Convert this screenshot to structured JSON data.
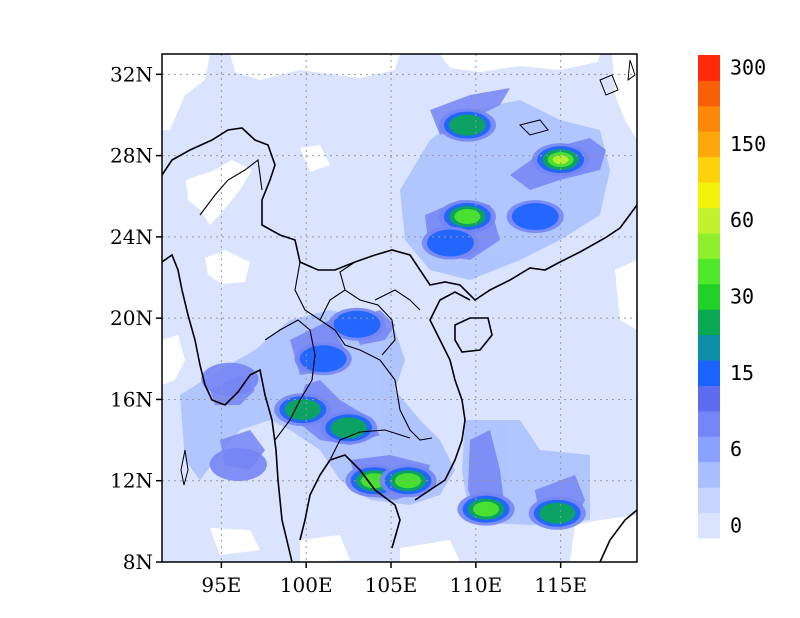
{
  "map": {
    "lon_range": [
      91.5,
      119.5
    ],
    "lat_range": [
      8,
      33
    ],
    "lat_ticks": [
      {
        "value": 8,
        "label": "8N"
      },
      {
        "value": 12,
        "label": "12N"
      },
      {
        "value": 16,
        "label": "16N"
      },
      {
        "value": 20,
        "label": "20N"
      },
      {
        "value": 24,
        "label": "24N"
      },
      {
        "value": 28,
        "label": "28N"
      },
      {
        "value": 32,
        "label": "32N"
      }
    ],
    "lon_ticks": [
      {
        "value": 95,
        "label": "95E"
      },
      {
        "value": 100,
        "label": "100E"
      },
      {
        "value": 105,
        "label": "105E"
      },
      {
        "value": 110,
        "label": "110E"
      },
      {
        "value": 115,
        "label": "115E"
      }
    ],
    "grid": true,
    "grid_style": "dotted"
  },
  "colorbar": {
    "colors": [
      "#dbe4ff",
      "#c6d5ff",
      "#a9bfff",
      "#8aa2ff",
      "#7585f5",
      "#5e6df0",
      "#1a63ff",
      "#0c8fa8",
      "#0aa852",
      "#22d128",
      "#4fe82a",
      "#8fef2a",
      "#c2f22e",
      "#f2f20c",
      "#fcd20a",
      "#fca80a",
      "#fc880a",
      "#f86008",
      "#ff2a0a"
    ],
    "labels": [
      {
        "text": "0",
        "index": 0
      },
      {
        "text": "6",
        "index": 3
      },
      {
        "text": "15",
        "index": 6
      },
      {
        "text": "30",
        "index": 9
      },
      {
        "text": "60",
        "index": 12
      },
      {
        "text": "150",
        "index": 15
      },
      {
        "text": "300",
        "index": 18
      }
    ]
  },
  "rain_blobs": [
    {
      "lon": 109.5,
      "lat": 29.5,
      "level": 9
    },
    {
      "lon": 115.0,
      "lat": 27.8,
      "level": 12
    },
    {
      "lon": 109.5,
      "lat": 25.0,
      "level": 10
    },
    {
      "lon": 108.5,
      "lat": 23.7,
      "level": 7
    },
    {
      "lon": 113.5,
      "lat": 25.0,
      "level": 6
    },
    {
      "lon": 99.8,
      "lat": 15.5,
      "level": 9
    },
    {
      "lon": 102.5,
      "lat": 14.6,
      "level": 9
    },
    {
      "lon": 104.0,
      "lat": 12.0,
      "level": 10
    },
    {
      "lon": 106.0,
      "lat": 12.0,
      "level": 10
    },
    {
      "lon": 110.6,
      "lat": 10.6,
      "level": 10
    },
    {
      "lon": 114.8,
      "lat": 10.4,
      "level": 8
    },
    {
      "lon": 103.0,
      "lat": 19.7,
      "level": 6
    },
    {
      "lon": 101.0,
      "lat": 18.0,
      "level": 6
    },
    {
      "lon": 96.0,
      "lat": 12.8,
      "level": 5
    },
    {
      "lon": 95.5,
      "lat": 17.0,
      "level": 5
    }
  ]
}
